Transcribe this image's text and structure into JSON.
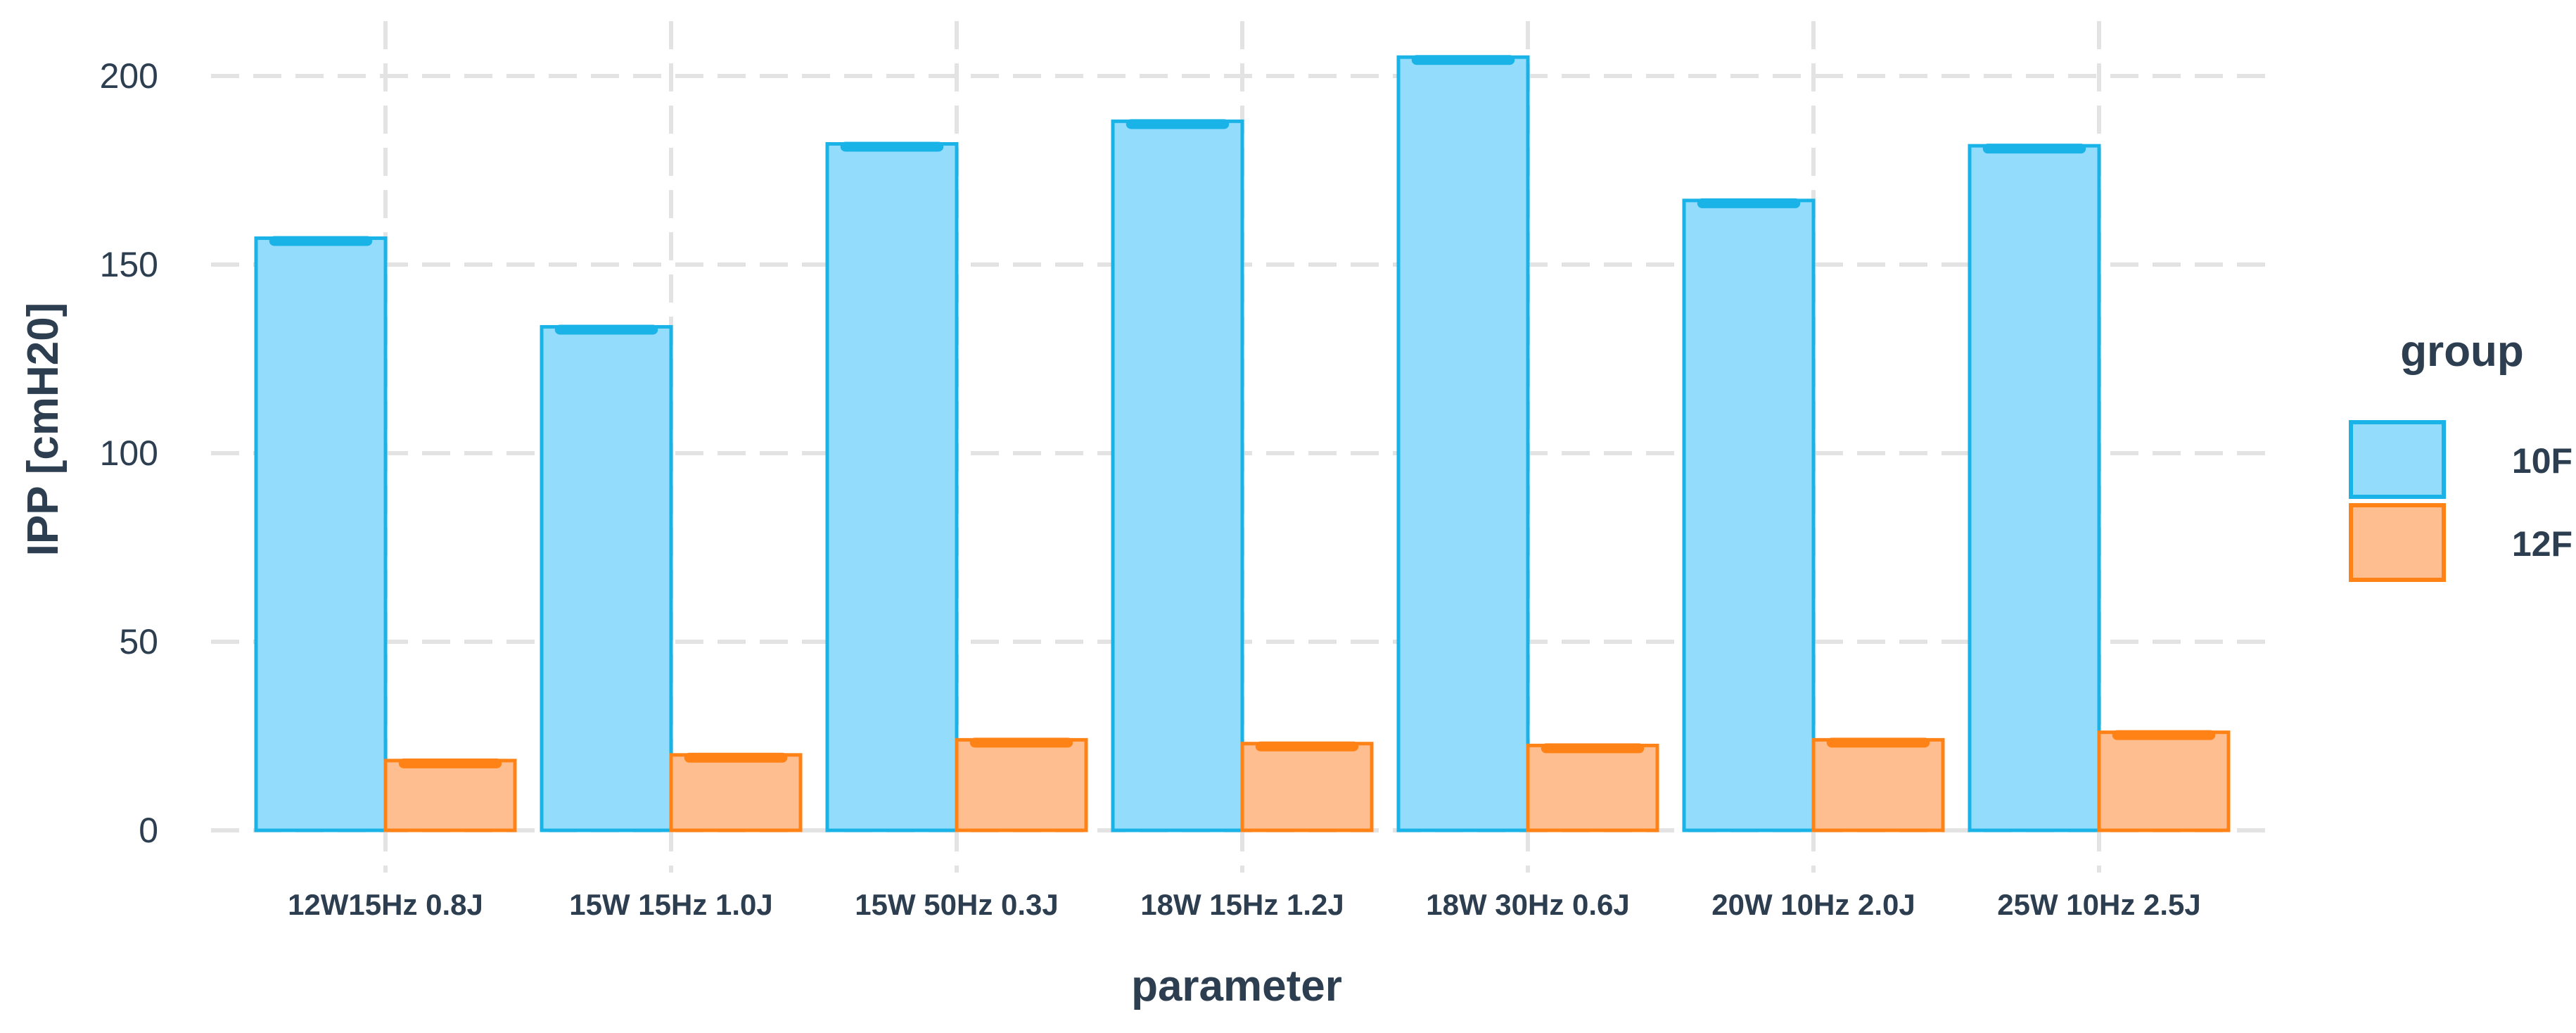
{
  "chart_data": {
    "type": "bar",
    "xlabel": "parameter",
    "ylabel": "IPP [cmH20]",
    "ylim": [
      0,
      215
    ],
    "yticks": [
      0,
      50,
      100,
      150,
      200
    ],
    "grid": true,
    "legend_title": "group",
    "legend_position": "right",
    "categories": [
      "12W15Hz 0.8J",
      "15W 15Hz 1.0J",
      "15W 50Hz 0.3J",
      "18W 15Hz 1.2J",
      "18W 30Hz 0.6J",
      "20W 10Hz 2.0J",
      "25W 10Hz 2.5J"
    ],
    "series": [
      {
        "name": "10F",
        "fill": "#94dcfb",
        "stroke": "#1ab3e8",
        "values": [
          157,
          133.5,
          182,
          188,
          205,
          167,
          181.5
        ]
      },
      {
        "name": "12F",
        "fill": "#ffbe90",
        "stroke": "#ff8216",
        "values": [
          18.5,
          20,
          24,
          23,
          22.5,
          24,
          26
        ]
      }
    ]
  }
}
